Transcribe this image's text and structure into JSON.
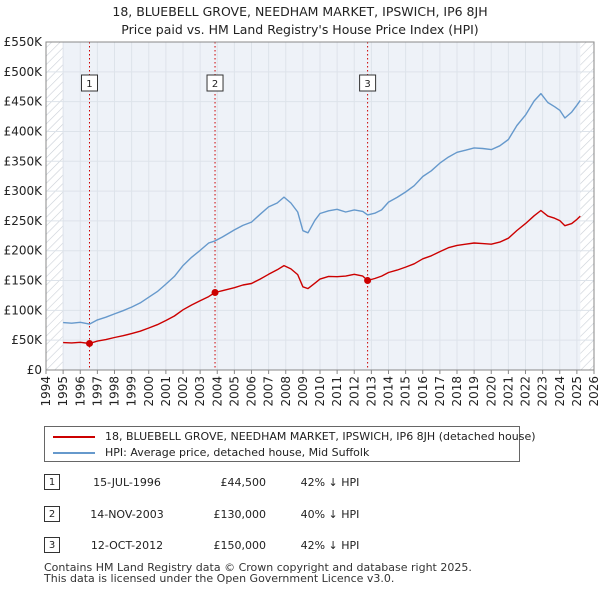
{
  "title_line1": "18, BLUEBELL GROVE, NEEDHAM MARKET, IPSWICH, IP6 8JH",
  "title_line2": "Price paid vs. HM Land Registry's House Price Index (HPI)",
  "colors": {
    "price": "#cc0000",
    "hpi": "#6699cc",
    "grid": "#dde3ea",
    "plot_bg": "#eef2f8",
    "hatch": "#c9ced6"
  },
  "chart_data": {
    "type": "line",
    "xlim": [
      1994,
      2026
    ],
    "ylim": [
      0,
      550000
    ],
    "x_ticks": [
      1994,
      1995,
      1996,
      1997,
      1998,
      1999,
      2000,
      2001,
      2002,
      2003,
      2004,
      2005,
      2006,
      2007,
      2008,
      2009,
      2010,
      2011,
      2012,
      2013,
      2014,
      2015,
      2016,
      2017,
      2018,
      2019,
      2020,
      2021,
      2022,
      2023,
      2024,
      2025,
      2026
    ],
    "y_ticks": [
      0,
      50000,
      100000,
      150000,
      200000,
      250000,
      300000,
      350000,
      400000,
      450000,
      500000,
      550000
    ],
    "y_tick_labels": [
      "£0",
      "£50K",
      "£100K",
      "£150K",
      "£200K",
      "£250K",
      "£300K",
      "£350K",
      "£400K",
      "£450K",
      "£500K",
      "£550K"
    ],
    "data_range": [
      1995.0,
      2025.2
    ],
    "series": [
      {
        "name": "18, BLUEBELL GROVE, NEEDHAM MARKET, IPSWICH, IP6 8JH (detached house)",
        "color": "#cc0000",
        "x": [
          1995.0,
          1995.5,
          1996.0,
          1996.54,
          1997.0,
          1997.5,
          1998.0,
          1998.5,
          1999.0,
          1999.5,
          2000.0,
          2000.5,
          2001.0,
          2001.5,
          2002.0,
          2002.5,
          2003.0,
          2003.5,
          2003.87,
          2004.3,
          2005.0,
          2005.5,
          2006.0,
          2006.5,
          2007.0,
          2007.5,
          2007.9,
          2008.3,
          2008.7,
          2009.0,
          2009.3,
          2009.7,
          2010.0,
          2010.5,
          2011.0,
          2011.5,
          2012.0,
          2012.5,
          2012.78,
          2013.2,
          2013.6,
          2014.0,
          2014.5,
          2015.0,
          2015.5,
          2016.0,
          2016.5,
          2017.0,
          2017.5,
          2018.0,
          2018.5,
          2019.0,
          2019.5,
          2020.0,
          2020.5,
          2021.0,
          2021.5,
          2022.0,
          2022.5,
          2022.9,
          2023.3,
          2023.7,
          2024.0,
          2024.3,
          2024.7,
          2025.0,
          2025.2
        ],
        "values": [
          46000,
          45500,
          46500,
          44500,
          48500,
          51000,
          54500,
          57500,
          61000,
          65000,
          70500,
          76000,
          83000,
          90500,
          101000,
          109000,
          116000,
          123000,
          130000,
          133000,
          138000,
          142500,
          145000,
          152500,
          160500,
          168000,
          175000,
          169500,
          160000,
          139500,
          136500,
          145500,
          152500,
          157000,
          156500,
          157500,
          160500,
          157500,
          150000,
          153500,
          157500,
          163500,
          167500,
          172500,
          178000,
          186500,
          191500,
          198500,
          205000,
          209000,
          211000,
          213000,
          212000,
          211000,
          214500,
          221000,
          234000,
          245500,
          258500,
          267500,
          258000,
          254500,
          250500,
          242000,
          245500,
          252500,
          258000
        ]
      },
      {
        "name": "HPI: Average price, detached house, Mid Suffolk",
        "color": "#6699cc",
        "x": [
          1995.0,
          1995.5,
          1996.0,
          1996.54,
          1997.0,
          1997.5,
          1998.0,
          1998.5,
          1999.0,
          1999.5,
          2000.0,
          2000.5,
          2001.0,
          2001.5,
          2002.0,
          2002.5,
          2003.0,
          2003.5,
          2003.87,
          2004.3,
          2005.0,
          2005.5,
          2006.0,
          2006.5,
          2007.0,
          2007.5,
          2007.9,
          2008.3,
          2008.7,
          2009.0,
          2009.3,
          2009.7,
          2010.0,
          2010.5,
          2011.0,
          2011.5,
          2012.0,
          2012.5,
          2012.78,
          2013.2,
          2013.6,
          2014.0,
          2014.5,
          2015.0,
          2015.5,
          2016.0,
          2016.5,
          2017.0,
          2017.5,
          2018.0,
          2018.5,
          2019.0,
          2019.5,
          2020.0,
          2020.5,
          2021.0,
          2021.5,
          2022.0,
          2022.5,
          2022.9,
          2023.3,
          2023.7,
          2024.0,
          2024.3,
          2024.7,
          2025.0,
          2025.2
        ],
        "values": [
          79500,
          78500,
          80000,
          77000,
          84000,
          88500,
          94000,
          99500,
          105500,
          112500,
          122000,
          131500,
          144000,
          157000,
          175000,
          189000,
          200500,
          213000,
          216500,
          223000,
          235000,
          242500,
          248000,
          261000,
          273500,
          280000,
          290000,
          280000,
          265000,
          233500,
          230000,
          251000,
          262500,
          267000,
          269500,
          265000,
          268500,
          266000,
          260000,
          263000,
          268500,
          281500,
          289500,
          298500,
          309000,
          324500,
          334000,
          347000,
          357000,
          365000,
          368500,
          372500,
          371500,
          369500,
          376000,
          386500,
          410000,
          427500,
          451000,
          463500,
          448500,
          441500,
          435500,
          422500,
          432500,
          444000,
          452000
        ]
      }
    ],
    "sale_markers": [
      {
        "label": "1",
        "x": 1996.54,
        "value": 44500
      },
      {
        "label": "2",
        "x": 2003.87,
        "value": 130000
      },
      {
        "label": "3",
        "x": 2012.78,
        "value": 150000
      }
    ]
  },
  "legend": {
    "price_label": "18, BLUEBELL GROVE, NEEDHAM MARKET, IPSWICH, IP6 8JH (detached house)",
    "hpi_label": "HPI: Average price, detached house, Mid Suffolk"
  },
  "sales": [
    {
      "num": "1",
      "date": "15-JUL-1996",
      "price": "£44,500",
      "hpi": "42% ↓ HPI"
    },
    {
      "num": "2",
      "date": "14-NOV-2003",
      "price": "£130,000",
      "hpi": "40% ↓ HPI"
    },
    {
      "num": "3",
      "date": "12-OCT-2012",
      "price": "£150,000",
      "hpi": "42% ↓ HPI"
    }
  ],
  "footer_line1": "Contains HM Land Registry data © Crown copyright and database right 2025.",
  "footer_line2": "This data is licensed under the Open Government Licence v3.0."
}
